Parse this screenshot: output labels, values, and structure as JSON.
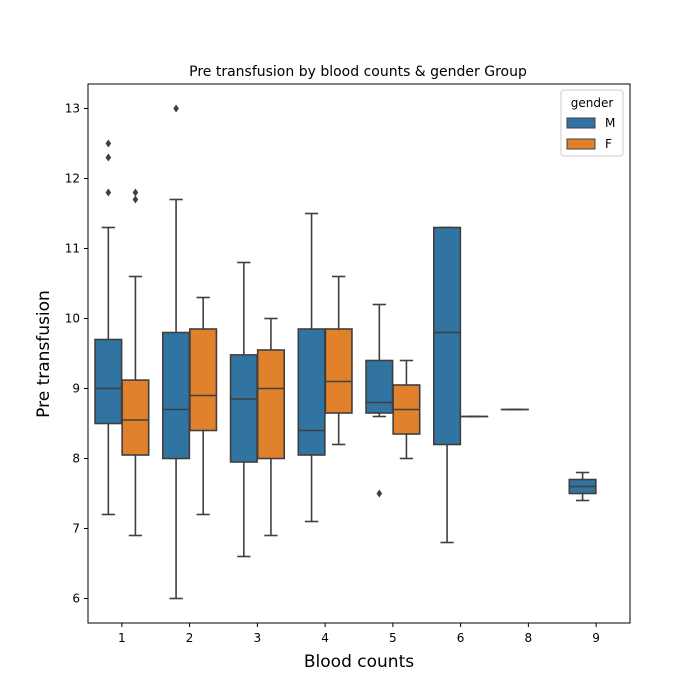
{
  "chart_data": {
    "type": "boxplot",
    "title": "Pre transfusion by blood counts & gender Group",
    "xlabel": "Blood counts",
    "ylabel": "Pre transfusion",
    "ylim": [
      5.65,
      13.35
    ],
    "yticks": [
      6,
      7,
      8,
      9,
      10,
      11,
      12,
      13
    ],
    "categories": [
      "1",
      "2",
      "3",
      "4",
      "5",
      "6",
      "8",
      "9"
    ],
    "legend": {
      "title": "gender",
      "position": "top-right"
    },
    "series": [
      {
        "name": "M",
        "color": "#3274a1",
        "boxes": [
          {
            "category": "1",
            "min": 7.2,
            "q1": 8.5,
            "median": 9.0,
            "q3": 9.7,
            "max": 11.3,
            "outliers": [
              11.8,
              12.3,
              12.5
            ]
          },
          {
            "category": "2",
            "min": 6.0,
            "q1": 8.0,
            "median": 8.7,
            "q3": 9.8,
            "max": 11.7,
            "outliers": [
              13.0
            ]
          },
          {
            "category": "3",
            "min": 6.6,
            "q1": 7.95,
            "median": 8.85,
            "q3": 9.48,
            "max": 10.8,
            "outliers": []
          },
          {
            "category": "4",
            "min": 7.1,
            "q1": 8.05,
            "median": 8.4,
            "q3": 9.85,
            "max": 11.5,
            "outliers": []
          },
          {
            "category": "5",
            "min": 8.6,
            "q1": 8.65,
            "median": 8.8,
            "q3": 9.4,
            "max": 10.2,
            "outliers": [
              7.5
            ]
          },
          {
            "category": "6",
            "min": 6.8,
            "q1": 8.2,
            "median": 9.8,
            "q3": 11.3,
            "max": 11.3,
            "outliers": []
          },
          {
            "category": "8",
            "min": 8.7,
            "q1": 8.7,
            "median": 8.7,
            "q3": 8.7,
            "max": 8.7,
            "outliers": []
          },
          {
            "category": "9",
            "min": 7.4,
            "q1": 7.5,
            "median": 7.6,
            "q3": 7.7,
            "max": 7.8,
            "outliers": []
          }
        ]
      },
      {
        "name": "F",
        "color": "#e1812c",
        "boxes": [
          {
            "category": "1",
            "min": 6.9,
            "q1": 8.05,
            "median": 8.55,
            "q3": 9.12,
            "max": 10.6,
            "outliers": [
              11.7,
              11.8
            ]
          },
          {
            "category": "2",
            "min": 7.2,
            "q1": 8.4,
            "median": 8.9,
            "q3": 9.85,
            "max": 10.3,
            "outliers": []
          },
          {
            "category": "3",
            "min": 6.9,
            "q1": 8.0,
            "median": 9.0,
            "q3": 9.55,
            "max": 10.0,
            "outliers": []
          },
          {
            "category": "4",
            "min": 8.2,
            "q1": 8.65,
            "median": 9.1,
            "q3": 9.85,
            "max": 10.6,
            "outliers": []
          },
          {
            "category": "5",
            "min": 8.0,
            "q1": 8.35,
            "median": 8.7,
            "q3": 9.05,
            "max": 9.4,
            "outliers": []
          },
          {
            "category": "6",
            "min": 8.6,
            "q1": 8.6,
            "median": 8.6,
            "q3": 8.6,
            "max": 8.6,
            "outliers": []
          }
        ]
      }
    ]
  }
}
